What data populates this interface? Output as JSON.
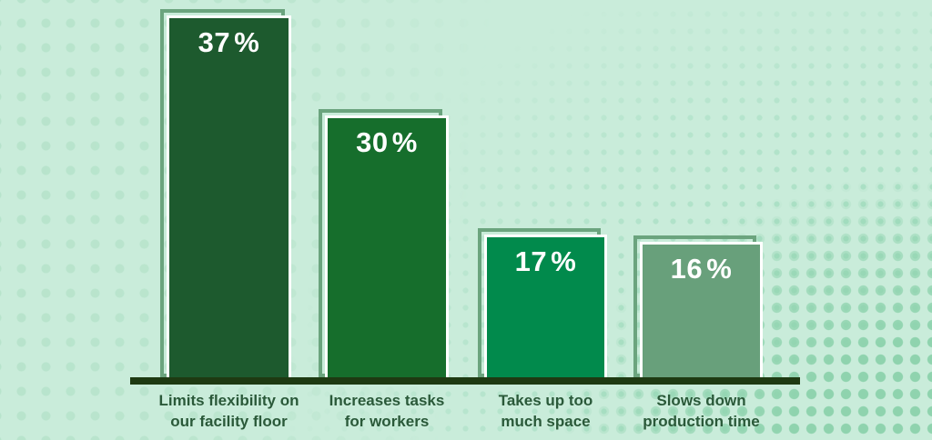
{
  "chart_data": {
    "type": "bar",
    "title": "",
    "unit": "%",
    "orientation": "vertical",
    "axis": {
      "baseline_visible": true,
      "gridlines": false,
      "y_ticks_visible": false
    },
    "legend": {
      "visible": false
    },
    "categories": [
      "Limits flexibility on our facility floor",
      "Increases tasks for workers",
      "Takes up too much space",
      "Slows down production time"
    ],
    "values": [
      37,
      30,
      17,
      16
    ],
    "bars": [
      {
        "value": 37,
        "value_label": "37 %",
        "category_lines": [
          "Limits flexibility on",
          "our facility floor"
        ],
        "fill": "#1d5a2e"
      },
      {
        "value": 30,
        "value_label": "30 %",
        "category_lines": [
          "Increases tasks",
          "for workers"
        ],
        "fill": "#166e2c"
      },
      {
        "value": 17,
        "value_label": "17 %",
        "category_lines": [
          "Takes up too",
          "much space"
        ],
        "fill": "#018a4c"
      },
      {
        "value": 16,
        "value_label": "16 %",
        "category_lines": [
          "Slows down",
          "production time"
        ],
        "fill": "#68a07b"
      }
    ]
  },
  "colors": {
    "background": "#c9ecda",
    "dots_left": "#b7e3cb",
    "dots_right": "#a9dfc4",
    "dots_right_large": "#8fd3ae",
    "bar_outline": "#6ba47e",
    "axis": "#1e3a12",
    "category_text": "#2a5939",
    "value_text": "#ffffff"
  }
}
